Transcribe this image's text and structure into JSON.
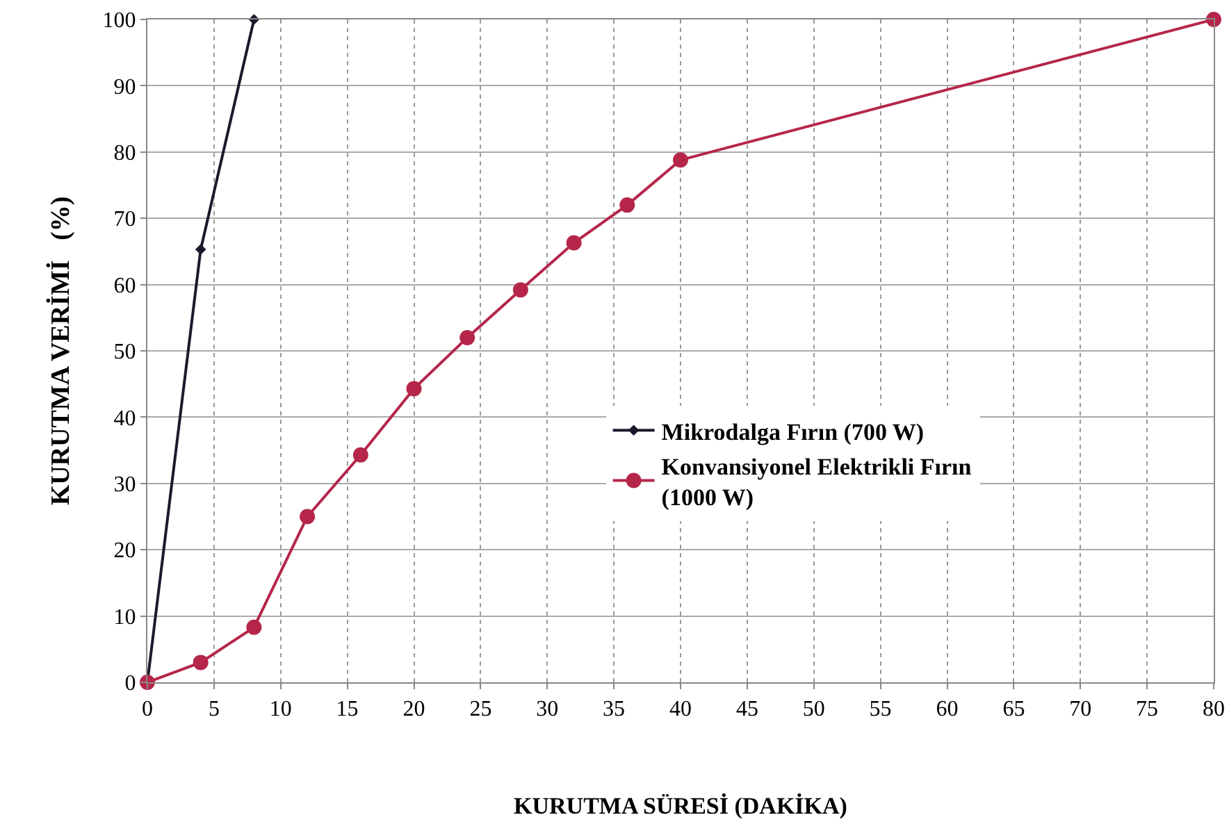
{
  "chart_data": {
    "type": "line",
    "xlabel": "KURUTMA SÜRESİ (DAKİKA)",
    "ylabel": "KURUTMA VERİMİ   (%)",
    "xlim": [
      0,
      80
    ],
    "xticks": [
      0,
      5,
      10,
      15,
      20,
      25,
      30,
      35,
      40,
      45,
      50,
      55,
      60,
      65,
      70,
      75,
      80
    ],
    "ylim": [
      0,
      100
    ],
    "yticks": [
      0,
      10,
      20,
      30,
      40,
      50,
      60,
      70,
      80,
      90,
      100
    ],
    "grid": true,
    "legend": "right",
    "line_style": "solid",
    "series": [
      {
        "name": "Mikrodalga Fırın (700 W)",
        "color": "#1a1a2e",
        "marker": "diamond",
        "x": [
          0,
          4,
          8
        ],
        "values": [
          0,
          65.3,
          100
        ]
      },
      {
        "name": "Konvansiyonel Elektrikli Fırın (1000 W)",
        "color": "#b5264a",
        "marker": "circle",
        "x": [
          0,
          4,
          8,
          12,
          16,
          20,
          24,
          28,
          32,
          36,
          40,
          80
        ],
        "values": [
          0,
          3,
          8.3,
          25,
          34.3,
          44.3,
          52,
          59.2,
          66.3,
          72,
          78.8,
          100
        ]
      }
    ]
  }
}
